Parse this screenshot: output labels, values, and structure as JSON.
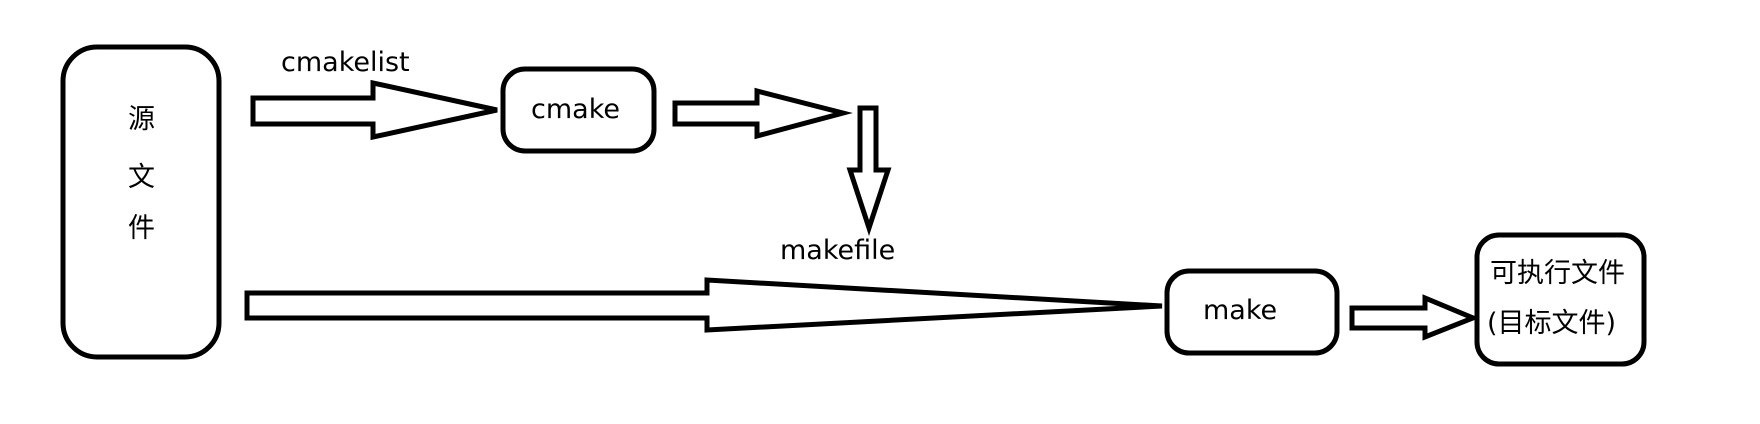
{
  "nodes": {
    "source": {
      "chars": [
        "源",
        "文",
        "件"
      ]
    },
    "cmake": {
      "label": "cmake"
    },
    "make": {
      "label": "make"
    },
    "target": {
      "line1": "可执行文件",
      "line2": "(目标文件)"
    }
  },
  "edge_labels": {
    "cmakelist": "cmakelist",
    "makefile": "makefile"
  }
}
